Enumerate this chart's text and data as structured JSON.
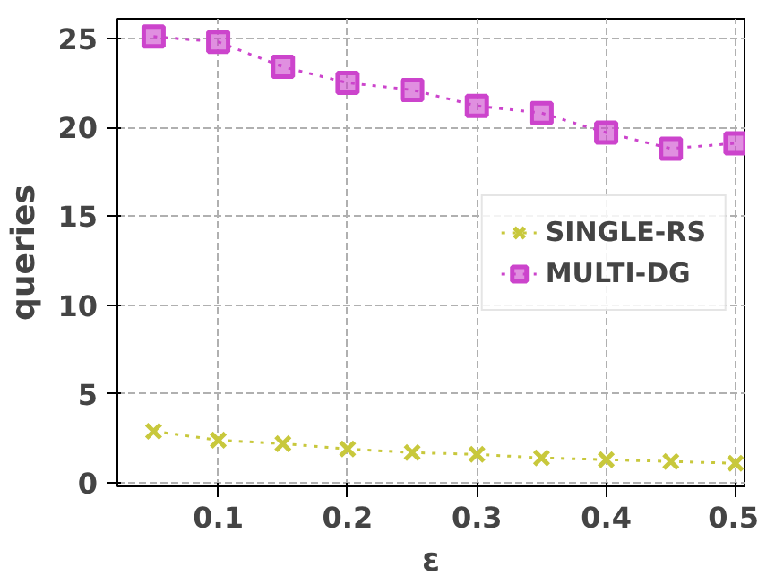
{
  "chart_data": {
    "type": "line",
    "xlabel": "ε",
    "ylabel": "queries",
    "x": [
      0.05,
      0.1,
      0.15,
      0.2,
      0.25,
      0.3,
      0.35,
      0.4,
      0.45,
      0.5
    ],
    "series": [
      {
        "name": "SINGLE-RS",
        "color": "#c8c83c",
        "marker": "cross",
        "values": [
          2.9,
          2.4,
          2.2,
          1.9,
          1.7,
          1.6,
          1.4,
          1.3,
          1.2,
          1.1
        ]
      },
      {
        "name": "MULTI-DG",
        "color": "#cc44cc",
        "marker": "square",
        "values": [
          25.1,
          24.8,
          23.4,
          22.5,
          22.1,
          21.2,
          20.8,
          19.7,
          18.8,
          19.1
        ]
      }
    ],
    "line_style": "dotted",
    "xlim": [
      0.022,
      0.507
    ],
    "ylim": [
      -0.2,
      26.1
    ],
    "xticks": [
      0.1,
      0.2,
      0.3,
      0.4,
      0.5
    ],
    "yticks": [
      0,
      5,
      10,
      15,
      20,
      25
    ],
    "grid": true,
    "legend": "right"
  }
}
